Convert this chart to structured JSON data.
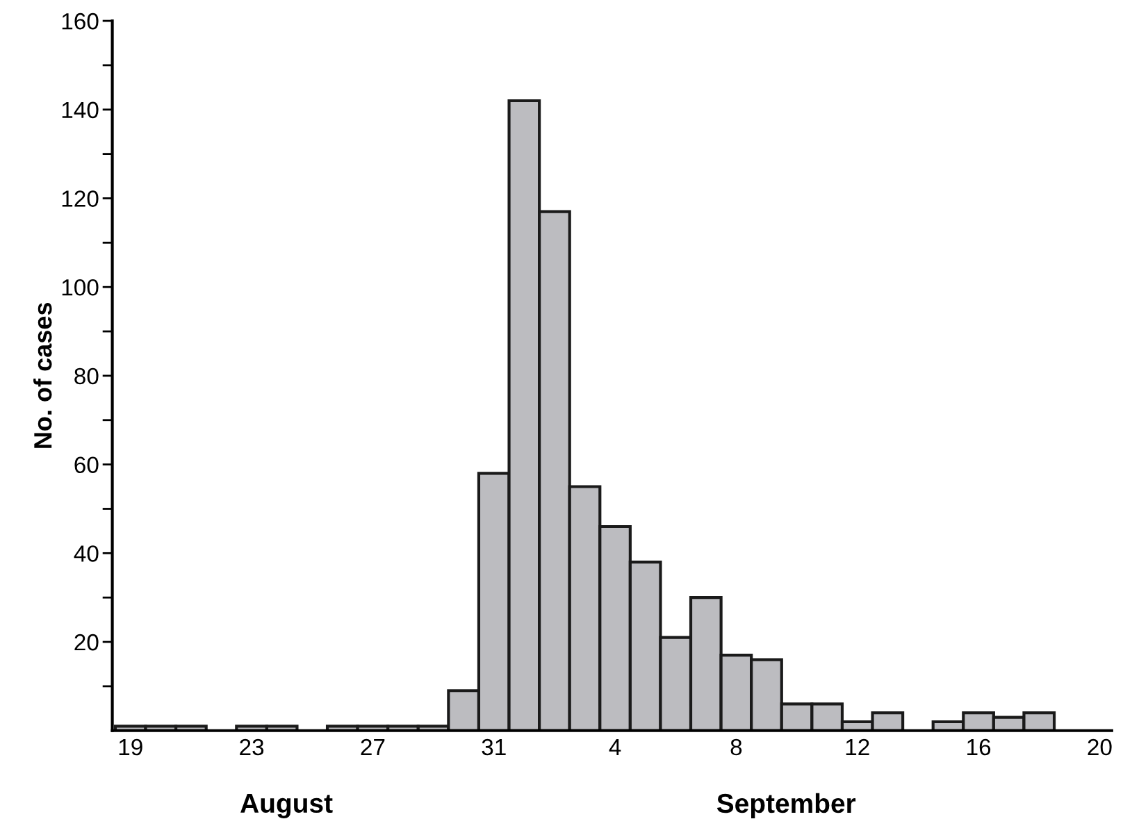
{
  "chart_data": {
    "type": "bar",
    "ylabel": "No. of cases",
    "categories": [
      "19",
      null,
      null,
      null,
      "23",
      null,
      null,
      null,
      "27",
      null,
      null,
      null,
      "31",
      null,
      null,
      null,
      "4",
      null,
      null,
      null,
      "8",
      null,
      null,
      null,
      "12",
      null,
      null,
      null,
      "16",
      null,
      null,
      null,
      "20"
    ],
    "values": [
      1,
      1,
      1,
      0,
      1,
      1,
      0,
      1,
      1,
      1,
      1,
      9,
      58,
      142,
      117,
      55,
      46,
      38,
      21,
      30,
      17,
      16,
      6,
      6,
      2,
      4,
      0,
      2,
      4,
      3,
      4,
      0,
      0
    ],
    "color": "#bcbcc0",
    "ylim": [
      0,
      160
    ],
    "yticks": [
      {
        "value": 10,
        "label": null
      },
      20,
      {
        "value": 30,
        "label": null
      },
      40,
      {
        "value": 50,
        "label": null
      },
      60,
      {
        "value": 70,
        "label": null
      },
      80,
      {
        "value": 90,
        "label": null
      },
      100,
      {
        "value": 110,
        "label": null
      },
      120,
      {
        "value": 130,
        "label": null
      },
      140,
      {
        "value": 150,
        "label": null
      },
      160
    ],
    "grid": false,
    "annotations": [
      "August",
      "September"
    ]
  }
}
